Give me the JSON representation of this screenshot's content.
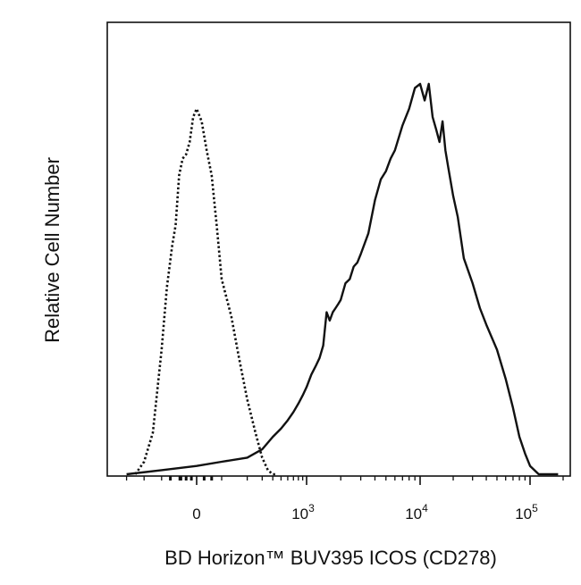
{
  "chart_data": {
    "type": "line",
    "title": "",
    "xlabel": "BD Horizon™ BUV395 ICOS (CD278)",
    "ylabel": "Relative Cell Number",
    "x_scale": "biexponential",
    "xlim": [
      -500,
      200000
    ],
    "ylim": [
      0,
      100
    ],
    "grid": false,
    "legend": "none",
    "x_tick_labels": [
      {
        "base": "0",
        "exp": "",
        "value": 0
      },
      {
        "base": "10",
        "exp": "3",
        "value": 1000
      },
      {
        "base": "10",
        "exp": "4",
        "value": 10000
      },
      {
        "base": "10",
        "exp": "5",
        "value": 100000
      }
    ],
    "series": [
      {
        "style": "dotted",
        "x": [
          -350,
          -300,
          -250,
          -200,
          -170,
          -140,
          -120,
          -100,
          -80,
          -60,
          -40,
          -20,
          0,
          20,
          40,
          60,
          80,
          100,
          130,
          160,
          200,
          250,
          300,
          350,
          400,
          450
        ],
        "y": [
          0,
          3,
          10,
          30,
          45,
          55,
          60,
          72,
          76,
          77,
          80,
          86,
          88,
          85,
          78,
          72,
          60,
          47,
          38,
          28,
          18,
          10,
          4,
          1,
          0,
          0
        ]
      },
      {
        "style": "solid",
        "x": [
          -400,
          -200,
          0,
          100,
          200,
          300,
          400,
          500,
          600,
          700,
          800,
          900,
          1000,
          1100,
          1200,
          1300,
          1400,
          1500,
          1600,
          1700,
          1800,
          1900,
          2000,
          2200,
          2400,
          2600,
          2800,
          3000,
          3500,
          4000,
          4500,
          5000,
          5500,
          6000,
          7000,
          8000,
          9000,
          10000,
          11000,
          12000,
          13000,
          14000,
          15000,
          16000,
          17000,
          18000,
          20000,
          22000,
          25000,
          30000,
          35000,
          40000,
          50000,
          60000,
          70000,
          80000,
          90000,
          100000,
          120000,
          150000,
          180000
        ],
        "y": [
          0,
          1,
          2,
          3,
          4,
          6,
          9,
          11,
          13,
          15,
          17,
          19,
          21,
          24,
          26,
          28,
          31,
          39,
          37,
          39,
          40,
          41,
          42,
          46,
          47,
          50,
          51,
          53,
          58,
          66,
          71,
          73,
          76,
          78,
          84,
          88,
          93,
          94,
          90,
          94,
          86,
          83,
          80,
          85,
          78,
          74,
          67,
          62,
          52,
          46,
          40,
          36,
          30,
          23,
          16,
          9,
          5,
          2,
          0,
          0,
          0
        ]
      }
    ]
  }
}
